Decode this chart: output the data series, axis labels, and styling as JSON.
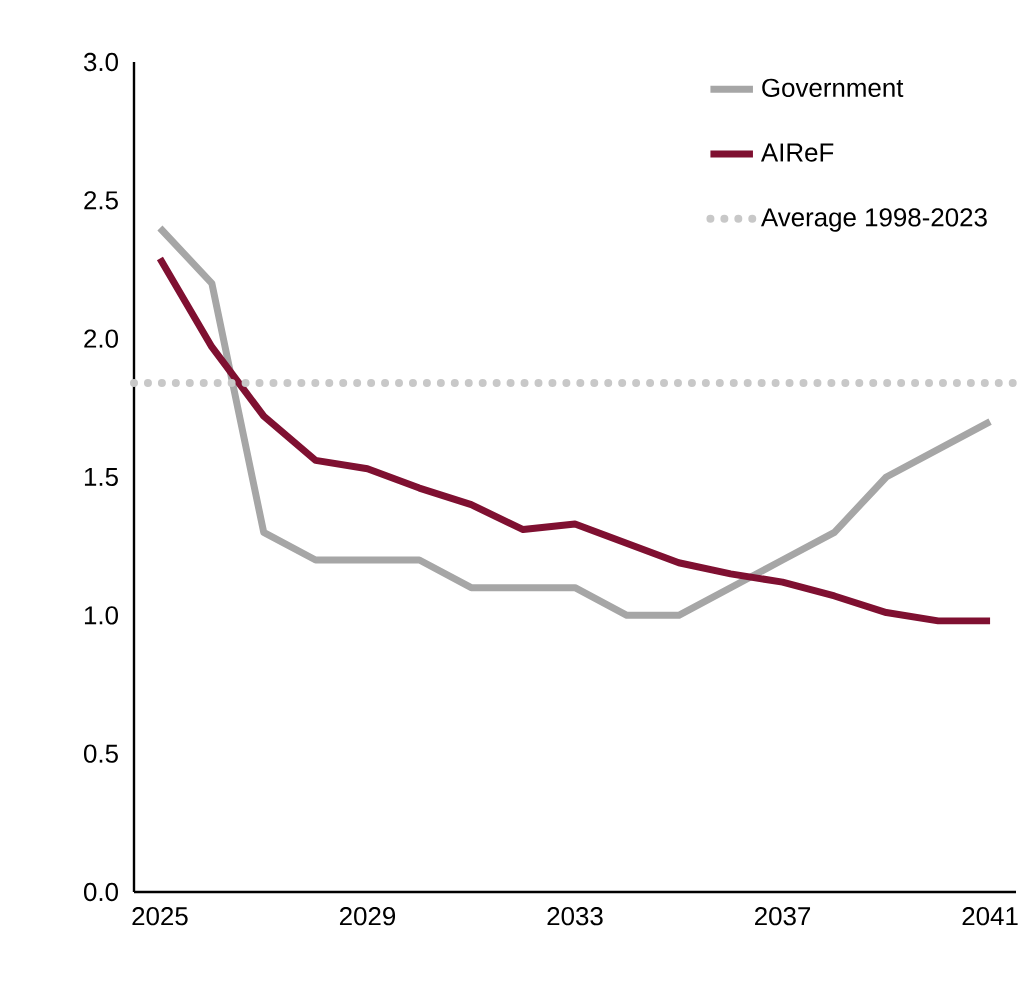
{
  "chart_data": {
    "type": "line",
    "x": [
      2025,
      2026,
      2027,
      2028,
      2029,
      2030,
      2031,
      2032,
      2033,
      2034,
      2035,
      2036,
      2037,
      2038,
      2039,
      2040,
      2041
    ],
    "series": [
      {
        "name": "Government",
        "color": "#a6a6a6",
        "values": [
          2.4,
          2.2,
          1.3,
          1.2,
          1.2,
          1.2,
          1.1,
          1.1,
          1.1,
          1.0,
          1.0,
          1.1,
          1.2,
          1.3,
          1.5,
          1.6,
          1.7
        ]
      },
      {
        "name": "AIReF",
        "color": "#7f1031",
        "values": [
          2.29,
          1.97,
          1.72,
          1.56,
          1.53,
          1.46,
          1.4,
          1.31,
          1.33,
          1.26,
          1.19,
          1.15,
          1.12,
          1.07,
          1.01,
          0.98,
          0.98
        ]
      }
    ],
    "ref_lines": [
      {
        "axis": "y",
        "value": 1.84,
        "label": "Average 1998-2023",
        "color": "#c8c8c8",
        "line_style": "dotted"
      }
    ],
    "xlim": [
      2024.5,
      2041.5
    ],
    "ylim": [
      0,
      3
    ],
    "xticks": [
      2025,
      2029,
      2033,
      2037,
      2041
    ],
    "yticks": [
      {
        "value": 0,
        "label": "0.0"
      },
      {
        "value": 0.5,
        "label": "0.5"
      },
      {
        "value": 1,
        "label": "1.0"
      },
      {
        "value": 1.5,
        "label": "1.5"
      },
      {
        "value": 2,
        "label": "2.0"
      },
      {
        "value": 2.5,
        "label": "2.5"
      },
      {
        "value": 3,
        "label": "3.0"
      }
    ],
    "legend": "top right",
    "grid": false,
    "marker": "none",
    "line_style": "solid"
  }
}
